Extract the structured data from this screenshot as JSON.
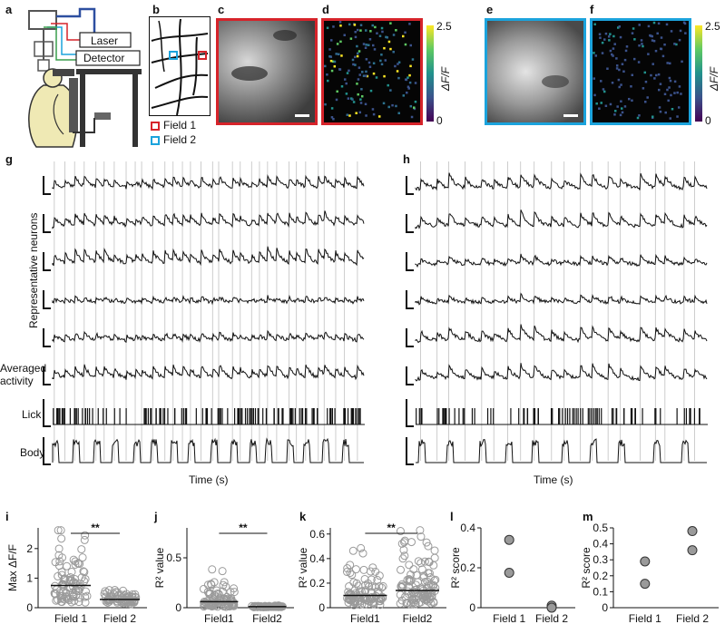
{
  "panels": {
    "a": "a",
    "b": "b",
    "c": "c",
    "d": "d",
    "e": "e",
    "f": "f",
    "g": "g",
    "h": "h",
    "i": "i",
    "j": "j",
    "k": "k",
    "l": "l",
    "m": "m"
  },
  "setup": {
    "laser": "Laser",
    "detector": "Detector"
  },
  "map": {
    "legend": [
      {
        "label": "Field 1",
        "color": "#d6232a"
      },
      {
        "label": "Field 2",
        "color": "#1ba3dc"
      }
    ]
  },
  "colorbar": {
    "max": "2.5",
    "min": "0",
    "label": "ΔF/F"
  },
  "traces": {
    "ylabel_neurons": "Representative neurons",
    "label_avg_1": "Averaged",
    "label_avg_2": "activity",
    "label_lick": "Lick",
    "label_body": "Body",
    "xlabel": "Time (s)"
  },
  "colors": {
    "field1": "#d6232a",
    "field2": "#1ba3dc",
    "dots": "#9a9a9a",
    "trace": "#111111"
  },
  "chart_data": [
    {
      "type": "scatter",
      "panel": "i",
      "categories": [
        "Field 1",
        "Field 2"
      ],
      "ylabel": "Max ΔF/F",
      "ylim": [
        0,
        2.7
      ],
      "yticks": [
        "0",
        "1",
        "2"
      ],
      "medians": [
        0.75,
        0.28
      ],
      "significance": "**"
    },
    {
      "type": "scatter",
      "panel": "j",
      "categories": [
        "Field1",
        "Field2"
      ],
      "ylabel": "R² value",
      "ylim": [
        0,
        0.8
      ],
      "yticks": [
        "0",
        "0.5"
      ],
      "medians": [
        0.06,
        0.01
      ],
      "significance": "**"
    },
    {
      "type": "scatter",
      "panel": "k",
      "categories": [
        "Field1",
        "Field2"
      ],
      "ylabel": "R² value",
      "ylim": [
        0,
        0.65
      ],
      "yticks": [
        "0",
        "0.2",
        "0.4",
        "0.6"
      ],
      "medians": [
        0.1,
        0.14
      ],
      "significance": "**"
    },
    {
      "type": "scatter",
      "panel": "l",
      "categories": [
        "Field 1",
        "Field 2"
      ],
      "ylabel": "R² score",
      "ylim": [
        0,
        0.4
      ],
      "yticks": [
        "0",
        "0.2",
        "0.4"
      ],
      "points": [
        {
          "category": "Field 1",
          "y": 0.34
        },
        {
          "category": "Field 1",
          "y": 0.175
        },
        {
          "category": "Field 2",
          "y": 0.01
        },
        {
          "category": "Field 2",
          "y": 0.0
        }
      ]
    },
    {
      "type": "scatter",
      "panel": "m",
      "categories": [
        "Field 1",
        "Field 2"
      ],
      "ylabel": "R² score",
      "ylim": [
        0,
        0.5
      ],
      "yticks": [
        "0",
        "0.1",
        "0.2",
        "0.3",
        "0.4",
        "0.5"
      ],
      "points": [
        {
          "category": "Field 1",
          "y": 0.29
        },
        {
          "category": "Field 1",
          "y": 0.15
        },
        {
          "category": "Field 2",
          "y": 0.48
        },
        {
          "category": "Field 2",
          "y": 0.36
        }
      ]
    }
  ]
}
